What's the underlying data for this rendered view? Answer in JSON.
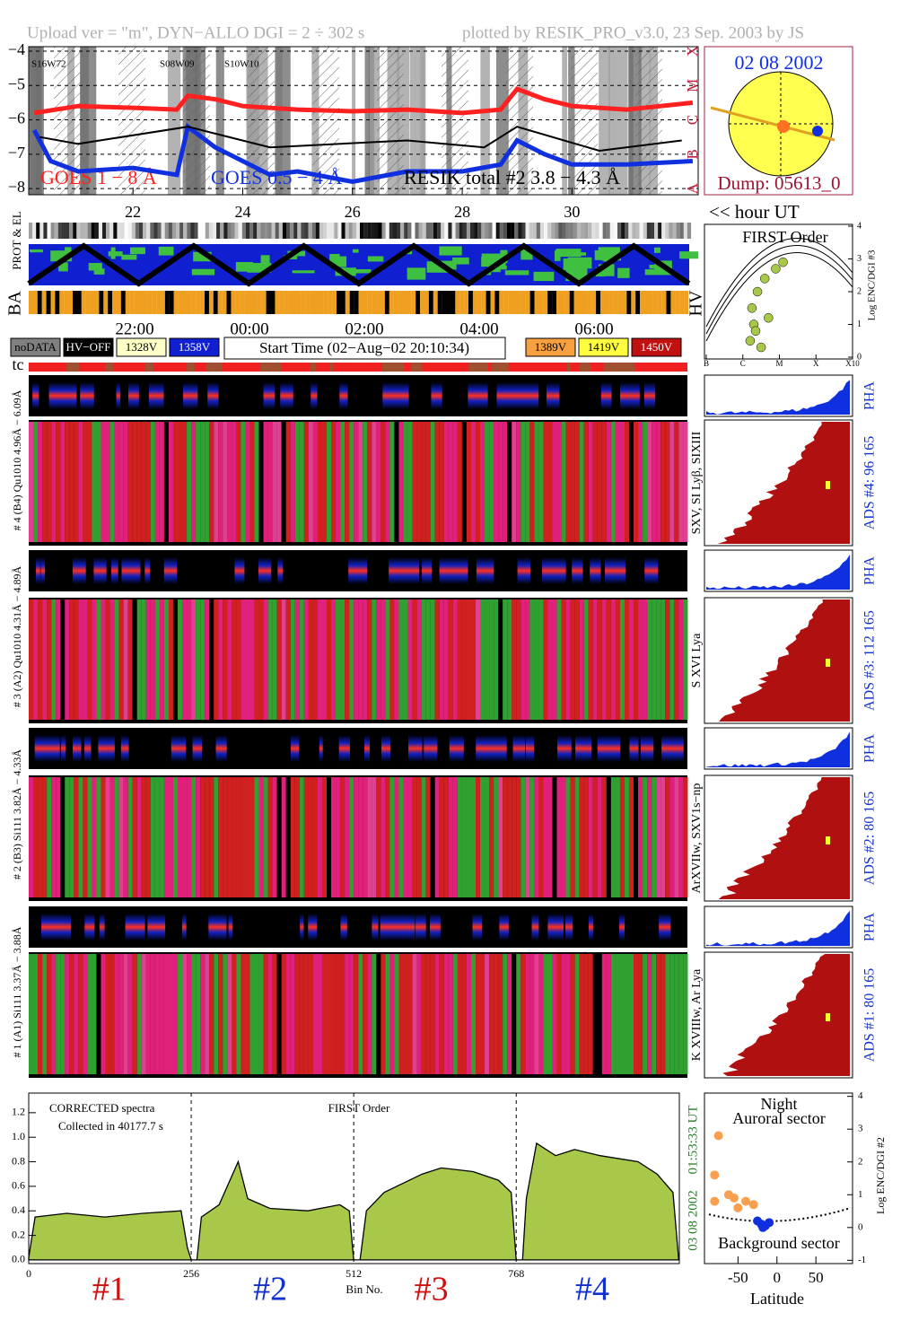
{
  "header": {
    "left": "Upload ver = \"m\", DYN−ALLO DGI =   2 ÷ 302 s",
    "right": "plotted by RESIK_PRO_v3.0, 23 Sep. 2003 by JS"
  },
  "date_box": {
    "date": "02 08 2002",
    "dump": "Dump: 05613_0"
  },
  "strip_labels": {
    "prot": "PROT & EL",
    "ba": "BA",
    "hv": "HV",
    "tc": "tc"
  },
  "time_axis": [
    "22:00",
    "00:00",
    "02:00",
    "04:00",
    "06:00"
  ],
  "hv_legend": [
    {
      "label": "noDATA",
      "color": "#808080"
    },
    {
      "label": "HV−OFF",
      "color": "#000000"
    },
    {
      "label": "1328V",
      "color": "#ffffc8"
    },
    {
      "label": "1358V",
      "color": "#1020d0"
    }
  ],
  "start_time": "Start Time (02−Aug−02 20:10:34)",
  "hv_legend_right": [
    {
      "label": "1389V",
      "color": "#f8a040"
    },
    {
      "label": "1419V",
      "color": "#ffff40"
    },
    {
      "label": "1450V",
      "color": "#c01010"
    }
  ],
  "detectors": [
    {
      "label": "# 4 (B4) Qu1010 4.96Å − 6.09Å",
      "pha": "PHA",
      "ads": "ADS #4:   96 165",
      "lines": "SXV, SI Lyβ, SIXIII"
    },
    {
      "label": "# 3 (A2) Qu1010 4.31Å − 4.89Å",
      "pha": "PHA",
      "ads": "ADS #3:   112 165",
      "lines": "S XVI Lya"
    },
    {
      "label": "# 2 (B3) Si111 3.82Å − 4.33Å",
      "pha": "PHA",
      "ads": "ADS #2:   80 165",
      "lines": "ArXVIIw, SXV1s−np"
    },
    {
      "label": "# 1 (A1) Si111 3.37Å − 3.88Å",
      "pha": "PHA",
      "ads": "ADS #1:   80 165",
      "lines": "K XVIIIw, Ar Lya"
    }
  ],
  "chart_data": [
    {
      "type": "line",
      "xlim": [
        20.1,
        32.3
      ],
      "ylim": [
        -8.18,
        -3.87
      ],
      "xticks": [
        22,
        24,
        26,
        28,
        30
      ],
      "yticks": [
        {
          "value": -4,
          "label": "−4"
        },
        {
          "value": -5,
          "label": "−5"
        },
        {
          "value": -6,
          "label": "−6"
        },
        {
          "value": -7,
          "label": "−7"
        },
        {
          "value": -8,
          "label": "−8"
        }
      ],
      "y_class_labels": [
        "X",
        "M",
        "C",
        "B",
        "A"
      ],
      "x_label": "<< hour UT",
      "annotations": [
        "S16W72",
        "S08W09",
        "S10W10"
      ],
      "series": [
        {
          "name": "GOES 1 − 8 Å",
          "color": "#ff2020",
          "x": [
            20.2,
            21,
            22,
            22.8,
            23,
            23.5,
            24,
            25,
            26,
            27,
            28,
            28.7,
            29,
            29.5,
            30,
            31,
            32.2
          ],
          "values": [
            -5.8,
            -5.6,
            -5.65,
            -5.7,
            -5.3,
            -5.4,
            -5.6,
            -5.7,
            -5.75,
            -5.7,
            -5.8,
            -5.7,
            -5.1,
            -5.4,
            -5.6,
            -5.7,
            -5.5
          ]
        },
        {
          "name": "GOES 0.5 − 4 Å",
          "color": "#1030e0",
          "x": [
            20.2,
            20.5,
            21,
            22,
            22.8,
            23,
            23.5,
            24,
            24.5,
            25,
            26,
            27,
            28,
            28.7,
            29,
            29.5,
            30,
            31,
            32.2
          ],
          "values": [
            -6.3,
            -7.2,
            -7.5,
            -7.4,
            -7.6,
            -6.2,
            -6.8,
            -7.2,
            -7.6,
            -7.5,
            -7.8,
            -7.5,
            -7.5,
            -7.3,
            -6.6,
            -7.0,
            -7.3,
            -7.3,
            -7.2
          ]
        },
        {
          "name": "RESIK total #2  3.8 − 4.3 Å",
          "color": "#000000",
          "x": [
            20.3,
            21,
            23,
            24.5,
            27,
            28.4,
            29,
            30.5,
            32
          ],
          "values": [
            -6.5,
            -6.7,
            -6.2,
            -6.8,
            -6.6,
            -6.8,
            -6.2,
            -6.9,
            -6.6
          ]
        }
      ]
    },
    {
      "type": "scatter",
      "title": "FIRST Order",
      "y_label": "Log ENC/DGI #3",
      "color": "#a8c84a",
      "xlim": [
        0,
        4
      ],
      "xticks": [
        {
          "value": 0,
          "label": "B"
        },
        {
          "value": 1,
          "label": "C"
        },
        {
          "value": 2,
          "label": "M"
        },
        {
          "value": 3,
          "label": "X"
        },
        {
          "value": 4,
          "label": "X10"
        }
      ],
      "ylim": [
        0,
        4
      ],
      "yticks": [
        0,
        1,
        2,
        3,
        4
      ],
      "x": [
        1.2,
        1.3,
        1.25,
        1.4,
        1.6,
        1.9,
        2.1,
        1.5,
        1.35,
        1.7
      ],
      "values": [
        0.5,
        1.0,
        1.5,
        2.0,
        2.4,
        2.7,
        2.9,
        0.3,
        0.8,
        1.2
      ]
    },
    {
      "type": "area",
      "texts": [
        "CORRECTED spectra",
        "Collected in 40177.7 s",
        "FIRST Order"
      ],
      "x_label": "Bin No.",
      "time_label": "01:53:33 UT",
      "date_label": "03 08 2002",
      "color": "#a8c84a",
      "segment_labels": [
        {
          "label": "#1",
          "color": "#d01010"
        },
        {
          "label": "#2",
          "color": "#1030d0"
        },
        {
          "label": "#3",
          "color": "#d01010"
        },
        {
          "label": "#4",
          "color": "#1030d0"
        }
      ],
      "xlim": [
        0,
        1025
      ],
      "xticks": [
        0,
        256,
        512,
        768
      ],
      "ylim": [
        -0.03,
        1.36
      ],
      "yticks": [
        {
          "value": 0,
          "label": "0.0"
        },
        {
          "value": 0.2,
          "label": "0.2"
        },
        {
          "value": 0.4,
          "label": "0.4"
        },
        {
          "value": 0.6,
          "label": "0.6"
        },
        {
          "value": 0.8,
          "label": "0.8"
        },
        {
          "value": 1.0,
          "label": "1.0"
        },
        {
          "value": 1.2,
          "label": "1.2"
        }
      ],
      "x": [
        0,
        10,
        60,
        120,
        180,
        240,
        250,
        256,
        265,
        272,
        300,
        330,
        345,
        380,
        440,
        490,
        505,
        512,
        522,
        532,
        560,
        620,
        650,
        700,
        740,
        760,
        768,
        778,
        784,
        800,
        830,
        860,
        900,
        960,
        990,
        1015,
        1024
      ],
      "values": [
        0.02,
        0.35,
        0.38,
        0.35,
        0.38,
        0.4,
        0.1,
        0,
        0,
        0.35,
        0.45,
        0.8,
        0.5,
        0.42,
        0.4,
        0.45,
        0.4,
        0,
        0,
        0.4,
        0.55,
        0.7,
        0.75,
        0.72,
        0.65,
        0.55,
        0,
        0,
        0.5,
        0.95,
        0.85,
        0.9,
        0.85,
        0.8,
        0.7,
        0.55,
        0
      ]
    },
    {
      "type": "scatter",
      "texts": [
        "Night",
        "Auroral sector",
        "Background sector"
      ],
      "x_label": "Latitude",
      "y_label": "Log ENC/DGI #2",
      "xlim": [
        -93,
        97
      ],
      "xticks": [
        -50,
        0,
        50
      ],
      "ylim": [
        -1.1,
        4.1
      ],
      "yticks": [
        -1,
        0,
        1,
        2,
        3,
        4
      ],
      "series": [
        {
          "color": "#f8a050",
          "x": [
            -75,
            -80,
            -80,
            -55,
            -40,
            -30,
            -50,
            -62
          ],
          "values": [
            2.8,
            1.6,
            0.8,
            0.9,
            0.8,
            0.7,
            0.6,
            1.0
          ]
        },
        {
          "color": "#1030e0",
          "x": [
            -20,
            -15,
            -10,
            -25,
            -18
          ],
          "values": [
            0.1,
            0.05,
            0.15,
            0.2,
            0.0
          ]
        }
      ]
    }
  ]
}
